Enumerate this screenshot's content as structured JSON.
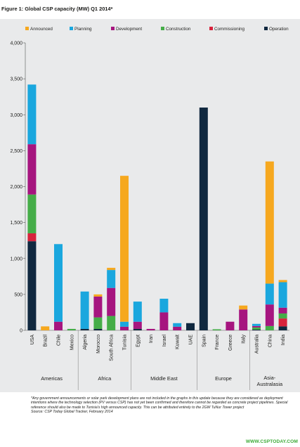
{
  "figure": {
    "title": "Figure 1: Global CSP capacity (MW) Q1 2014*",
    "footnote": "*Any government announcements or solar park development plans are not included in the graphs in this update because they are considered as deployment intentions where the technology selection (PV versus CSP) has not yet been confirmed and therefore cannot be regarded as concrete project pipelines. Special reference should also be made to Tunisia's high announced capacity. This can be attributed entirely to the 2GW TuNur Tower project",
    "source": "Source: CSP Today Global Tracker, February 2014",
    "site": "WWW.CSPTODAY.COM"
  },
  "chart_data": {
    "type": "bar",
    "stacked": true,
    "title": "Figure 1: Global CSP capacity (MW) Q1 2014*",
    "ylim": [
      0,
      4000
    ],
    "yticks": [
      0,
      500,
      1000,
      1500,
      2000,
      2500,
      3000,
      3500,
      4000
    ],
    "ytick_labels": [
      "0",
      "500",
      "1,000",
      "1,500",
      "2,000",
      "2,500",
      "3,000",
      "3,500",
      "4,000"
    ],
    "grid": false,
    "legend_position": "top",
    "categories": [
      "USA",
      "Brazil",
      "Chile",
      "Mexico",
      "Algeria",
      "Morocco",
      "South Africa",
      "Tunisia",
      "Egypt",
      "Iran",
      "Israel",
      "Kuwait",
      "UAE",
      "Spain",
      "France",
      "Greece",
      "Italy",
      "Australia",
      "China",
      "India"
    ],
    "groups": [
      {
        "label": "Americas",
        "categories": [
          "USA",
          "Brazil",
          "Chile",
          "Mexico"
        ]
      },
      {
        "label": "Africa",
        "categories": [
          "Algeria",
          "Morocco",
          "South Africa",
          "Tunisia"
        ]
      },
      {
        "label": "Middle East",
        "categories": [
          "Egypt",
          "Iran",
          "Israel",
          "Kuwait",
          "UAE"
        ]
      },
      {
        "label": "Europe",
        "categories": [
          "Spain",
          "France",
          "Greece",
          "Italy"
        ]
      },
      {
        "label": "Asia-Australasia",
        "categories": [
          "Australia",
          "China",
          "India"
        ]
      }
    ],
    "series": [
      {
        "name": "Operation",
        "color": "#10283f",
        "values": [
          1240,
          0,
          0,
          0,
          20,
          20,
          0,
          0,
          20,
          0,
          0,
          0,
          100,
          3100,
          0,
          0,
          0,
          10,
          0,
          55
        ]
      },
      {
        "name": "Commissioning",
        "color": "#d7233c",
        "values": [
          110,
          0,
          0,
          0,
          0,
          0,
          0,
          0,
          0,
          0,
          0,
          0,
          0,
          0,
          0,
          0,
          0,
          0,
          0,
          110
        ]
      },
      {
        "name": "Construction",
        "color": "#45ad48",
        "values": [
          540,
          0,
          0,
          20,
          0,
          160,
          200,
          0,
          0,
          0,
          0,
          0,
          0,
          0,
          15,
          0,
          0,
          30,
          60,
          70
        ]
      },
      {
        "name": "Development",
        "color": "#a6157f",
        "values": [
          700,
          0,
          120,
          0,
          0,
          290,
          390,
          50,
          100,
          20,
          250,
          50,
          0,
          0,
          0,
          120,
          290,
          20,
          300,
          80
        ]
      },
      {
        "name": "Planning",
        "color": "#1aa7de",
        "values": [
          830,
          0,
          1080,
          0,
          520,
          0,
          250,
          70,
          280,
          0,
          190,
          50,
          0,
          0,
          0,
          0,
          0,
          30,
          290,
          355
        ]
      },
      {
        "name": "Announced",
        "color": "#f6a81f",
        "values": [
          0,
          55,
          0,
          0,
          0,
          30,
          30,
          2030,
          0,
          0,
          0,
          0,
          0,
          0,
          0,
          0,
          55,
          0,
          1700,
          30
        ]
      }
    ],
    "legend_order": [
      "Announced",
      "Planning",
      "Development",
      "Construction",
      "Commissioning",
      "Operation"
    ]
  }
}
